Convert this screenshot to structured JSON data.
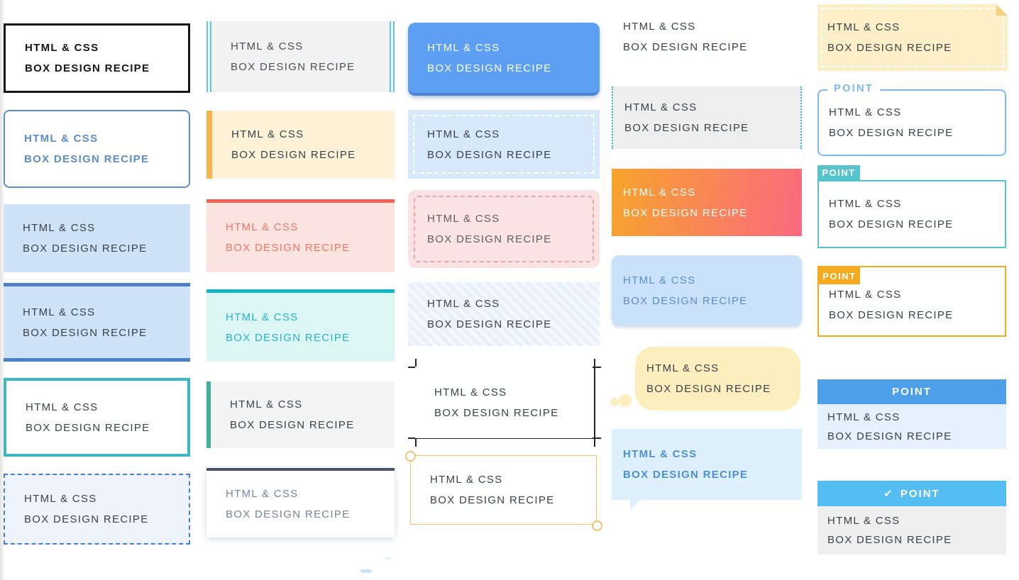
{
  "common": {
    "line1": "HTML & CSS",
    "line2": "BOX DESIGN RECIPE"
  },
  "labels": {
    "point": "POINT"
  },
  "icons": {
    "check": "✔"
  },
  "colors": {
    "text_dark": "#3b4049",
    "blue_accent": "#4a7dc9",
    "blue_text": "#5b8ccd",
    "lightblue_fill": "#cfe3f8",
    "pale_blue_fill": "#edf4fd",
    "teal_border": "#3cb7c4",
    "cyan_double": "#64c4d8",
    "orange_accent": "#f5b34c",
    "cream_fill": "#fdf1d7",
    "red_accent": "#ee6352",
    "pink_fill": "#fbe3e0",
    "teal_accent": "#10b6c4",
    "cyan_fill": "#dcf6f4",
    "green_accent": "#3fae9c",
    "navy_accent": "#4a5568",
    "button_blue": "#5d9ff2",
    "gradient_start": "#f7a42c",
    "gradient_end": "#fa6980",
    "bubble_cream": "#fdeebe",
    "bubble_blue": "#dff0fd",
    "sticky_yellow": "#fcefc7",
    "point_blue": "#7db9f0",
    "point_teal": "#56c3cf",
    "point_orange": "#f5a91d",
    "header_blue": "#4da0e8",
    "header_sky": "#54bdf2"
  }
}
